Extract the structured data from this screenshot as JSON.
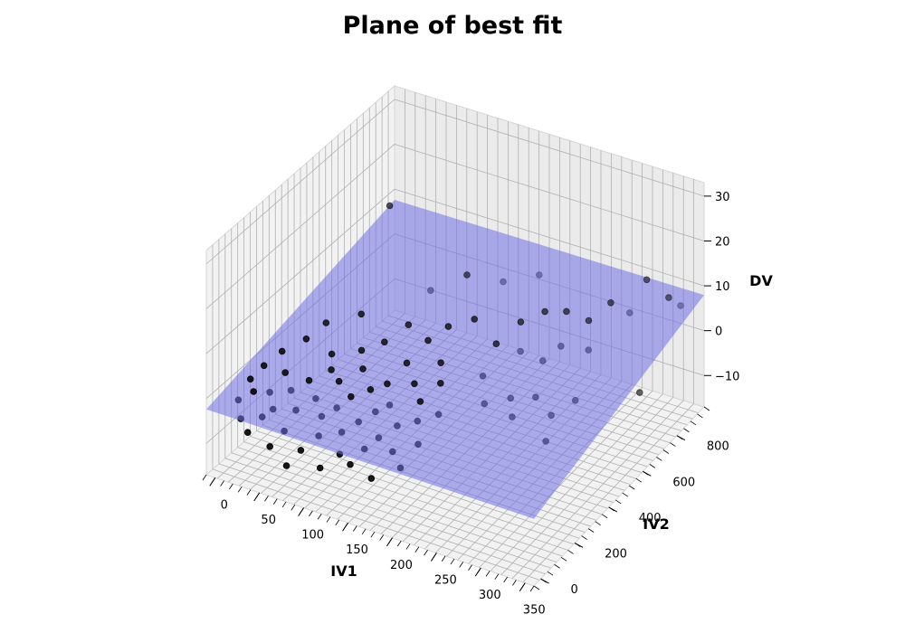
{
  "chart_data": {
    "type": "scatter3d",
    "title": "Plane of best fit",
    "xlabel": "IV1",
    "ylabel": "IV2",
    "zlabel": "DV",
    "x_ticks": [
      0,
      50,
      100,
      150,
      200,
      250,
      300,
      350
    ],
    "y_ticks": [
      0,
      200,
      400,
      600,
      800
    ],
    "z_ticks": [
      -10,
      0,
      10,
      20,
      30
    ],
    "xlim": [
      -10,
      360
    ],
    "ylim": [
      -40,
      960
    ],
    "zlim": [
      -17,
      33
    ],
    "grid": true,
    "point_color": "#000000",
    "plane_color": "#6f6fe6",
    "plane": {
      "intercept": -2.0,
      "coef_iv1": 0.001,
      "coef_iv2": 0.01
    },
    "points": [
      {
        "iv1": 5,
        "iv2": 60,
        "dv": -3
      },
      {
        "iv1": 8,
        "iv2": 110,
        "dv": 0
      },
      {
        "iv1": 12,
        "iv2": 40,
        "dv": -6
      },
      {
        "iv1": 15,
        "iv2": 150,
        "dv": 2
      },
      {
        "iv1": 18,
        "iv2": 80,
        "dv": -1
      },
      {
        "iv1": 22,
        "iv2": 30,
        "dv": -8
      },
      {
        "iv1": 25,
        "iv2": 200,
        "dv": 4
      },
      {
        "iv1": 28,
        "iv2": 120,
        "dv": -2
      },
      {
        "iv1": 32,
        "iv2": 60,
        "dv": -5
      },
      {
        "iv1": 35,
        "iv2": 170,
        "dv": 1
      },
      {
        "iv1": 38,
        "iv2": 90,
        "dv": -4
      },
      {
        "iv1": 42,
        "iv2": 250,
        "dv": 6
      },
      {
        "iv1": 45,
        "iv2": 40,
        "dv": -10
      },
      {
        "iv1": 48,
        "iv2": 140,
        "dv": -1
      },
      {
        "iv1": 52,
        "iv2": 310,
        "dv": 8
      },
      {
        "iv1": 55,
        "iv2": 70,
        "dv": -7
      },
      {
        "iv1": 58,
        "iv2": 190,
        "dv": 0
      },
      {
        "iv1": 62,
        "iv2": 100,
        "dv": -3
      },
      {
        "iv1": 65,
        "iv2": 280,
        "dv": 3
      },
      {
        "iv1": 68,
        "iv2": 20,
        "dv": -12
      },
      {
        "iv1": 72,
        "iv2": 160,
        "dv": -2
      },
      {
        "iv1": 75,
        "iv2": 230,
        "dv": 2
      },
      {
        "iv1": 78,
        "iv2": 50,
        "dv": -9
      },
      {
        "iv1": 82,
        "iv2": 360,
        "dv": 10
      },
      {
        "iv1": 85,
        "iv2": 130,
        "dv": -4
      },
      {
        "iv1": 88,
        "iv2": 210,
        "dv": 1
      },
      {
        "iv1": 92,
        "iv2": 80,
        "dv": -6
      },
      {
        "iv1": 95,
        "iv2": 300,
        "dv": 5
      },
      {
        "iv1": 98,
        "iv2": 150,
        "dv": -2
      },
      {
        "iv1": 102,
        "iv2": 40,
        "dv": -11
      },
      {
        "iv1": 105,
        "iv2": 260,
        "dv": 3
      },
      {
        "iv1": 108,
        "iv2": 180,
        "dv": 0
      },
      {
        "iv1": 112,
        "iv2": 110,
        "dv": -5
      },
      {
        "iv1": 115,
        "iv2": 330,
        "dv": 7
      },
      {
        "iv1": 118,
        "iv2": 70,
        "dv": -8
      },
      {
        "iv1": 122,
        "iv2": 220,
        "dv": 1
      },
      {
        "iv1": 125,
        "iv2": 140,
        "dv": -3
      },
      {
        "iv1": 128,
        "iv2": 400,
        "dv": 9
      },
      {
        "iv1": 132,
        "iv2": 60,
        "dv": -9
      },
      {
        "iv1": 135,
        "iv2": 250,
        "dv": 2
      },
      {
        "iv1": 138,
        "iv2": 170,
        "dv": -1
      },
      {
        "iv1": 142,
        "iv2": 90,
        "dv": -6
      },
      {
        "iv1": 145,
        "iv2": 310,
        "dv": 5
      },
      {
        "iv1": 148,
        "iv2": 200,
        "dv": 0
      },
      {
        "iv1": 152,
        "iv2": 120,
        "dv": -4
      },
      {
        "iv1": 155,
        "iv2": 380,
        "dv": 8
      },
      {
        "iv1": 158,
        "iv2": 50,
        "dv": -10
      },
      {
        "iv1": 162,
        "iv2": 270,
        "dv": 3
      },
      {
        "iv1": 165,
        "iv2": 160,
        "dv": -2
      },
      {
        "iv1": 168,
        "iv2": 430,
        "dv": 10
      },
      {
        "iv1": 172,
        "iv2": 100,
        "dv": -5
      },
      {
        "iv1": 175,
        "iv2": 240,
        "dv": 1
      },
      {
        "iv1": 178,
        "iv2": 340,
        "dv": 6
      },
      {
        "iv1": 182,
        "iv2": 190,
        "dv": -1
      },
      {
        "iv1": 185,
        "iv2": 80,
        "dv": -7
      },
      {
        "iv1": 188,
        "iv2": 290,
        "dv": 4
      },
      {
        "iv1": 192,
        "iv2": 460,
        "dv": 12
      },
      {
        "iv1": 195,
        "iv2": 130,
        "dv": -3
      },
      {
        "iv1": 198,
        "iv2": 230,
        "dv": 0
      },
      {
        "iv1": 205,
        "iv2": 520,
        "dv": 5
      },
      {
        "iv1": 210,
        "iv2": 420,
        "dv": 2
      },
      {
        "iv1": 215,
        "iv2": 610,
        "dv": 7
      },
      {
        "iv1": 220,
        "iv2": 380,
        "dv": -2
      },
      {
        "iv1": 225,
        "iv2": 560,
        "dv": 3
      },
      {
        "iv1": 230,
        "iv2": 480,
        "dv": -4
      },
      {
        "iv1": 235,
        "iv2": 650,
        "dv": 9
      },
      {
        "iv1": 240,
        "iv2": 440,
        "dv": -6
      },
      {
        "iv1": 245,
        "iv2": 590,
        "dv": 1
      },
      {
        "iv1": 250,
        "iv2": 700,
        "dv": 8
      },
      {
        "iv1": 255,
        "iv2": 500,
        "dv": -3
      },
      {
        "iv1": 260,
        "iv2": 620,
        "dv": 4
      },
      {
        "iv1": 265,
        "iv2": 540,
        "dv": -8
      },
      {
        "iv1": 270,
        "iv2": 730,
        "dv": 6
      },
      {
        "iv1": 275,
        "iv2": 460,
        "dv": -10
      },
      {
        "iv1": 280,
        "iv2": 680,
        "dv": 2
      },
      {
        "iv1": 285,
        "iv2": 580,
        "dv": -5
      },
      {
        "iv1": 290,
        "iv2": 760,
        "dv": 10
      },
      {
        "iv1": 300,
        "iv2": 820,
        "dv": 6
      },
      {
        "iv1": 310,
        "iv2": 870,
        "dv": 12
      },
      {
        "iv1": 320,
        "iv2": 780,
        "dv": -9
      },
      {
        "iv1": 330,
        "iv2": 900,
        "dv": 8
      },
      {
        "iv1": 340,
        "iv2": 920,
        "dv": 6
      },
      {
        "iv1": 55,
        "iv2": 640,
        "dv": 22
      },
      {
        "iv1": 150,
        "iv2": 820,
        "dv": 4
      },
      {
        "iv1": 180,
        "iv2": 880,
        "dv": 5
      },
      {
        "iv1": 120,
        "iv2": 760,
        "dv": 6
      },
      {
        "iv1": 90,
        "iv2": 700,
        "dv": 3
      }
    ]
  }
}
